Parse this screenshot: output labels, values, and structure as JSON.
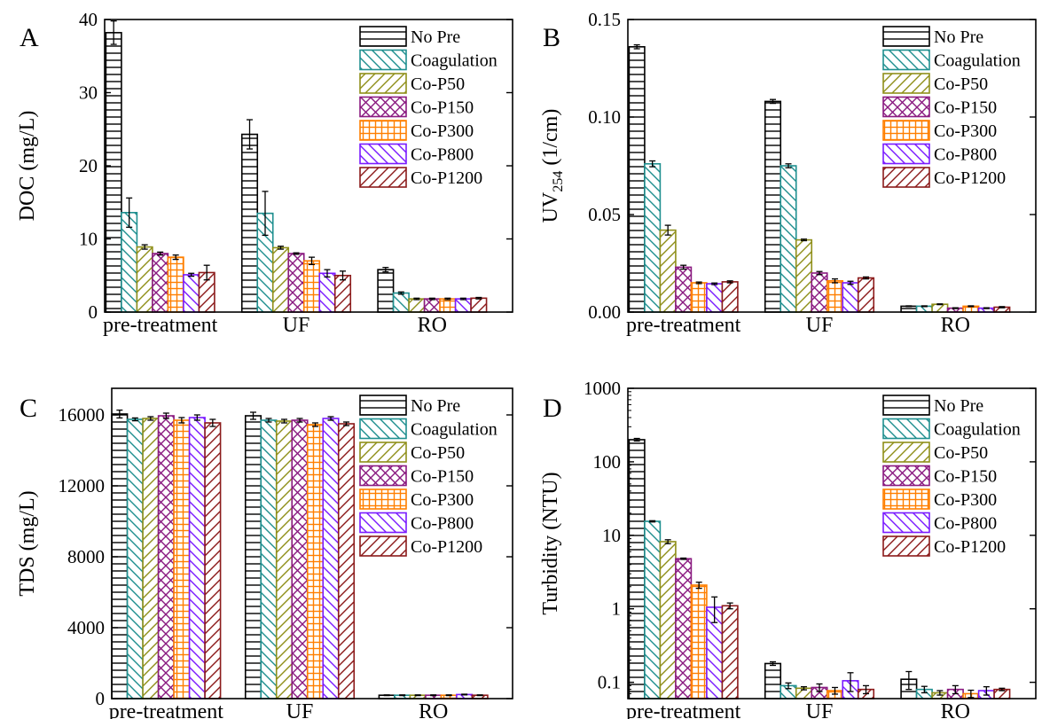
{
  "legend": [
    "No Pre",
    "Coagulation",
    "Co-P50",
    "Co-P150",
    "Co-P300",
    "Co-P800",
    "Co-P1200"
  ],
  "series_colors": [
    "#000000",
    "#1f8f8f",
    "#8f8f1a",
    "#8a1a80",
    "#ff7f00",
    "#7a1aff",
    "#8b1a1a"
  ],
  "series_patterns": [
    "hlines",
    "back-diag",
    "fwd-diag",
    "cross-diag",
    "grid",
    "back-diag",
    "fwd-diag"
  ],
  "chart_data": [
    {
      "panel_label": "A",
      "type": "bar",
      "ylabel": "DOC (mg/L)",
      "ylabel_sub": "",
      "yscale": "linear",
      "ylim": [
        0,
        40
      ],
      "yticks": [
        0,
        10,
        20,
        30,
        40
      ],
      "ytick_labels": [
        "0",
        "10",
        "20",
        "30",
        "40"
      ],
      "categories": [
        "pre-treatment",
        "UF",
        "RO"
      ],
      "legend_position": "top-right",
      "series": [
        {
          "name": "No Pre",
          "values": [
            38.2,
            24.3,
            5.8
          ],
          "errors": [
            1.6,
            2.0,
            0.3
          ]
        },
        {
          "name": "Coagulation",
          "values": [
            13.6,
            13.5,
            2.6
          ],
          "errors": [
            2.0,
            3.0,
            0.15
          ]
        },
        {
          "name": "Co-P50",
          "values": [
            8.9,
            8.8,
            1.8
          ],
          "errors": [
            0.3,
            0.2,
            0.1
          ]
        },
        {
          "name": "Co-P150",
          "values": [
            8.0,
            8.0,
            1.8
          ],
          "errors": [
            0.2,
            0.1,
            0.1
          ]
        },
        {
          "name": "Co-P300",
          "values": [
            7.5,
            7.0,
            1.8
          ],
          "errors": [
            0.3,
            0.5,
            0.1
          ]
        },
        {
          "name": "Co-P800",
          "values": [
            5.1,
            5.3,
            1.8
          ],
          "errors": [
            0.2,
            0.5,
            0.1
          ]
        },
        {
          "name": "Co-P1200",
          "values": [
            5.4,
            5.0,
            1.9
          ],
          "errors": [
            1.0,
            0.6,
            0.1
          ]
        }
      ]
    },
    {
      "panel_label": "B",
      "type": "bar",
      "ylabel": "UV",
      "ylabel_sub": "254",
      "ylabel_suffix": " (1/cm)",
      "yscale": "linear",
      "ylim": [
        0,
        0.15
      ],
      "yticks": [
        0,
        0.05,
        0.1,
        0.15
      ],
      "ytick_labels": [
        "0.00",
        "0.05",
        "0.10",
        "0.15"
      ],
      "categories": [
        "pre-treatment",
        "UF",
        "RO"
      ],
      "legend_position": "top-right",
      "series": [
        {
          "name": "No Pre",
          "values": [
            0.136,
            0.108,
            0.003
          ],
          "errors": [
            0.001,
            0.001,
            0.0002
          ]
        },
        {
          "name": "Coagulation",
          "values": [
            0.076,
            0.075,
            0.003
          ],
          "errors": [
            0.0015,
            0.001,
            0.0002
          ]
        },
        {
          "name": "Co-P50",
          "values": [
            0.042,
            0.037,
            0.004
          ],
          "errors": [
            0.0025,
            0.0004,
            0.0002
          ]
        },
        {
          "name": "Co-P150",
          "values": [
            0.023,
            0.02,
            0.002
          ],
          "errors": [
            0.001,
            0.0008,
            0.0002
          ]
        },
        {
          "name": "Co-P300",
          "values": [
            0.015,
            0.016,
            0.003
          ],
          "errors": [
            0.0004,
            0.001,
            0.0002
          ]
        },
        {
          "name": "Co-P800",
          "values": [
            0.0145,
            0.015,
            0.002
          ],
          "errors": [
            0.0004,
            0.0008,
            0.0002
          ]
        },
        {
          "name": "Co-P1200",
          "values": [
            0.0155,
            0.0175,
            0.0025
          ],
          "errors": [
            0.0005,
            0.0005,
            0.0003
          ]
        }
      ]
    },
    {
      "panel_label": "C",
      "type": "bar",
      "ylabel": "TDS (mg/L)",
      "ylabel_sub": "",
      "yscale": "linear",
      "ylim": [
        0,
        17500
      ],
      "yticks": [
        0,
        4000,
        8000,
        12000,
        16000
      ],
      "ytick_labels": [
        "0",
        "4000",
        "8000",
        "12000",
        "16000"
      ],
      "categories": [
        "pre-treatment",
        "UF",
        "RO"
      ],
      "legend_position": "top-right",
      "series": [
        {
          "name": "No Pre",
          "values": [
            16050,
            15950,
            190
          ],
          "errors": [
            220,
            200,
            20
          ]
        },
        {
          "name": "Coagulation",
          "values": [
            15750,
            15700,
            190
          ],
          "errors": [
            80,
            100,
            20
          ]
        },
        {
          "name": "Co-P50",
          "values": [
            15800,
            15650,
            190
          ],
          "errors": [
            100,
            100,
            20
          ]
        },
        {
          "name": "Co-P150",
          "values": [
            15950,
            15700,
            190
          ],
          "errors": [
            150,
            100,
            20
          ]
        },
        {
          "name": "Co-P300",
          "values": [
            15700,
            15450,
            190
          ],
          "errors": [
            150,
            100,
            20
          ]
        },
        {
          "name": "Co-P800",
          "values": [
            15850,
            15800,
            230
          ],
          "errors": [
            150,
            100,
            20
          ]
        },
        {
          "name": "Co-P1200",
          "values": [
            15550,
            15500,
            190
          ],
          "errors": [
            200,
            100,
            20
          ]
        }
      ]
    },
    {
      "panel_label": "D",
      "type": "bar",
      "ylabel": "Turbidity (NTU)",
      "ylabel_sub": "",
      "yscale": "log",
      "ylim": [
        0.06,
        1000
      ],
      "yticks": [
        0.1,
        1,
        10,
        100,
        1000
      ],
      "ytick_labels": [
        "0.1",
        "1",
        "10",
        "100",
        "1000"
      ],
      "categories": [
        "pre-treatment",
        "UF",
        "RO"
      ],
      "legend_position": "top-right",
      "series": [
        {
          "name": "No Pre",
          "values": [
            200,
            0.18,
            0.11
          ],
          "errors": [
            8,
            0.01,
            0.03
          ]
        },
        {
          "name": "Coagulation",
          "values": [
            15.5,
            0.09,
            0.08
          ],
          "errors": [
            0.3,
            0.008,
            0.008
          ]
        },
        {
          "name": "Co-P50",
          "values": [
            8.2,
            0.083,
            0.072
          ],
          "errors": [
            0.5,
            0.004,
            0.005
          ]
        },
        {
          "name": "Co-P150",
          "values": [
            4.8,
            0.085,
            0.08
          ],
          "errors": [
            0.1,
            0.01,
            0.01
          ]
        },
        {
          "name": "Co-P300",
          "values": [
            2.1,
            0.077,
            0.07
          ],
          "errors": [
            0.2,
            0.008,
            0.008
          ]
        },
        {
          "name": "Co-P800",
          "values": [
            1.05,
            0.105,
            0.077
          ],
          "errors": [
            0.4,
            0.03,
            0.01
          ]
        },
        {
          "name": "Co-P1200",
          "values": [
            1.1,
            0.08,
            0.08
          ],
          "errors": [
            0.1,
            0.01,
            0.003
          ]
        }
      ]
    }
  ]
}
